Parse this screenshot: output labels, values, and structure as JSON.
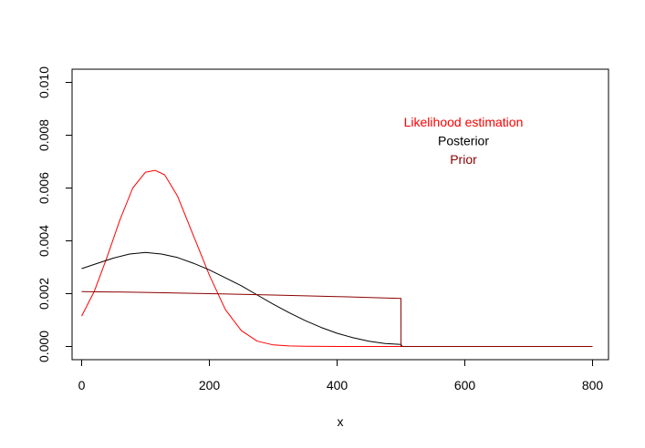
{
  "chart_data": {
    "type": "line",
    "title": "",
    "xlabel": "x",
    "ylabel": "",
    "xlim": [
      -15,
      825
    ],
    "ylim": [
      -0.0005,
      0.0105
    ],
    "x_ticks": [
      0,
      200,
      400,
      600,
      800
    ],
    "y_ticks": [
      0.0,
      0.002,
      0.004,
      0.006,
      0.008,
      0.01
    ],
    "x_tick_labels": [
      "0",
      "200",
      "400",
      "600",
      "800"
    ],
    "y_tick_labels": [
      "0.000",
      "0.002",
      "0.004",
      "0.006",
      "0.008",
      "0.010"
    ],
    "grid": false,
    "legend_position": "top-right",
    "legend": [
      "Likelihood estimation",
      "Posterior",
      "Prior"
    ],
    "colors": {
      "likelihood": "#ff0000",
      "posterior": "#000000",
      "prior": "#8b0000"
    },
    "series": [
      {
        "name": "Likelihood estimation",
        "color": "#ff0000",
        "x": [
          0,
          20,
          40,
          60,
          80,
          100,
          115,
          130,
          150,
          175,
          200,
          225,
          250,
          275,
          300,
          325,
          350,
          400,
          500,
          600,
          700,
          800
        ],
        "y": [
          0.00115,
          0.0021,
          0.0034,
          0.0048,
          0.006,
          0.0066,
          0.00667,
          0.0065,
          0.0057,
          0.0042,
          0.0027,
          0.0014,
          0.0006,
          0.0002,
          6e-05,
          2e-05,
          1e-05,
          0.0,
          0.0,
          0.0,
          0.0,
          0.0
        ]
      },
      {
        "name": "Posterior",
        "color": "#000000",
        "x": [
          0,
          25,
          50,
          75,
          100,
          125,
          150,
          175,
          200,
          225,
          250,
          275,
          300,
          325,
          350,
          375,
          400,
          425,
          450,
          475,
          500,
          502,
          600,
          700,
          800
        ],
        "y": [
          0.00295,
          0.00315,
          0.00335,
          0.0035,
          0.00356,
          0.0035,
          0.00337,
          0.00315,
          0.0029,
          0.0026,
          0.0023,
          0.00195,
          0.0016,
          0.00128,
          0.00098,
          0.00072,
          0.0005,
          0.00033,
          0.0002,
          0.00011,
          8e-05,
          0.0,
          0.0,
          0.0,
          0.0
        ]
      },
      {
        "name": "Prior",
        "color": "#8b0000",
        "x": [
          0,
          100,
          200,
          300,
          400,
          500,
          500.1,
          600,
          700,
          800
        ],
        "y": [
          0.00208,
          0.00205,
          0.002,
          0.00195,
          0.00189,
          0.00182,
          0.0,
          0.0,
          0.0,
          0.0
        ]
      }
    ]
  }
}
